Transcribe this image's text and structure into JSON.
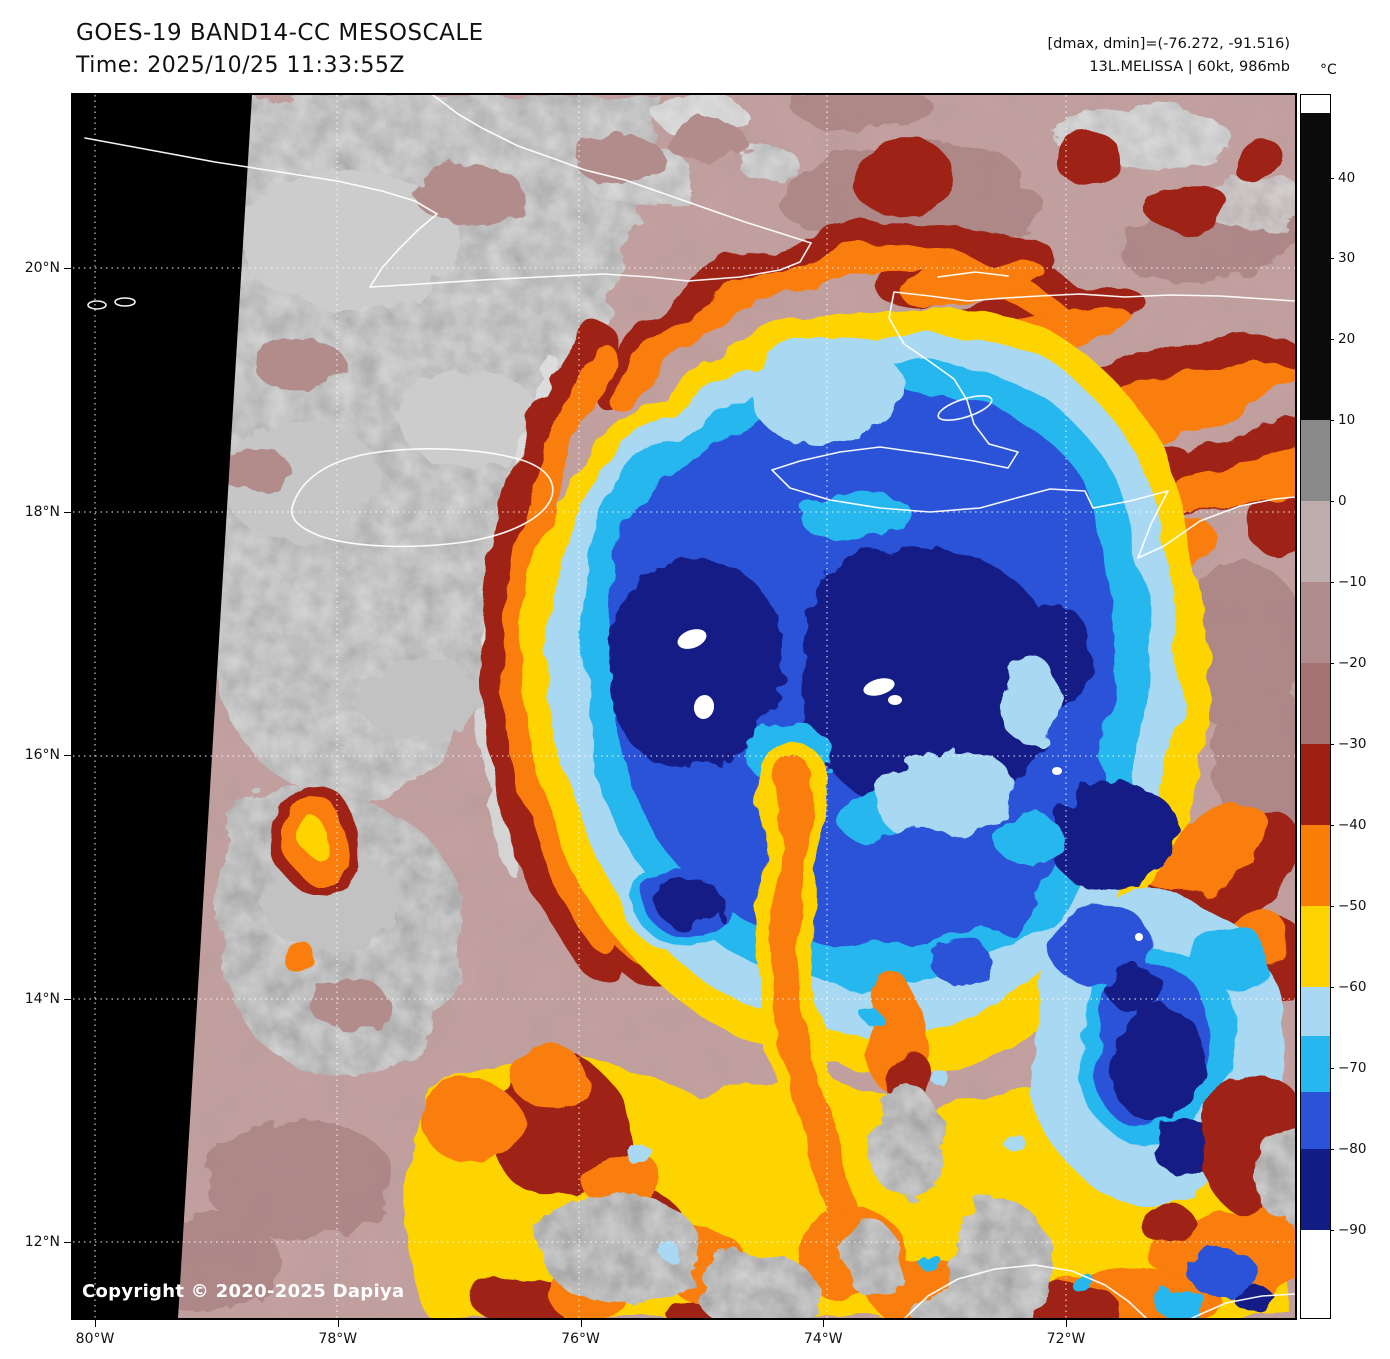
{
  "header": {
    "title": "GOES-19 BAND14-CC MESOSCALE",
    "time": "Time: 2025/10/25 11:33:55Z",
    "dminmax": "[dmax, dmin]=(-76.272, -91.516)",
    "storm": "13L.MELISSA | 60kt, 986mb"
  },
  "colorbar": {
    "unit": "°C",
    "tick_values": [
      40,
      30,
      20,
      10,
      0,
      -10,
      -20,
      -30,
      -40,
      -50,
      -60,
      -70,
      -80,
      -90
    ],
    "segments": [
      {
        "from": 50.2,
        "to": 48,
        "color": "#ffffff"
      },
      {
        "from": 48,
        "to": 10,
        "color": "#0b0b0b"
      },
      {
        "from": 10,
        "to": 0,
        "color": "#8a8a8a"
      },
      {
        "from": 0,
        "to": -10,
        "color": "#bfadad"
      },
      {
        "from": -10,
        "to": -20,
        "color": "#b18c8c"
      },
      {
        "from": -20,
        "to": -30,
        "color": "#a57272"
      },
      {
        "from": -30,
        "to": -40,
        "color": "#9e2012"
      },
      {
        "from": -40,
        "to": -50,
        "color": "#f97e07"
      },
      {
        "from": -50,
        "to": -60,
        "color": "#fdd401"
      },
      {
        "from": -60,
        "to": -66,
        "color": "#a9d9f2"
      },
      {
        "from": -66,
        "to": -73,
        "color": "#27b7ef"
      },
      {
        "from": -73,
        "to": -80,
        "color": "#2c52d8"
      },
      {
        "from": -80,
        "to": -90,
        "color": "#121c85"
      },
      {
        "from": -90,
        "to": -100.9,
        "color": "#ffffff"
      }
    ]
  },
  "axes": {
    "lat_labels": [
      "20°N",
      "18°N",
      "16°N",
      "14°N",
      "12°N"
    ],
    "lon_labels": [
      "80°W",
      "78°W",
      "76°W",
      "74°W",
      "72°W"
    ]
  },
  "footer": {
    "copyright": "Copyright © 2020-2025 Dapiya"
  }
}
